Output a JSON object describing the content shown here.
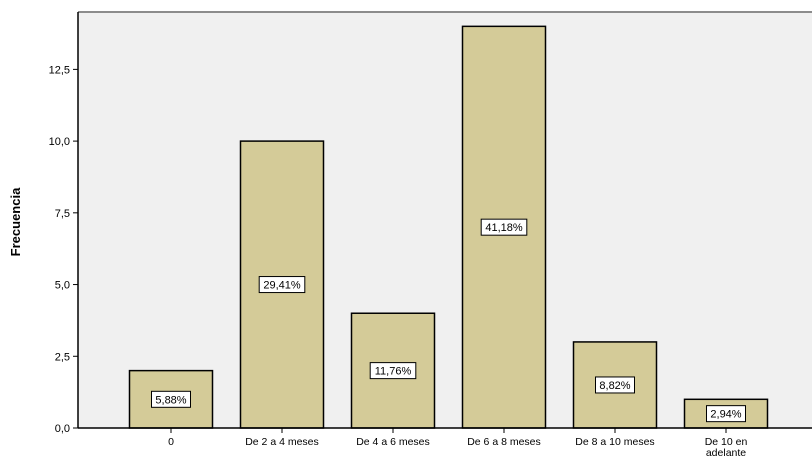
{
  "chart_data": {
    "type": "bar",
    "title": "",
    "xlabel": "",
    "ylabel": "Frecuencia",
    "ylim": [
      0,
      14.5
    ],
    "yticks": [
      "0,0",
      "2,5",
      "5,0",
      "7,5",
      "10,0",
      "12,5"
    ],
    "ytick_values": [
      0,
      2.5,
      5,
      7.5,
      10,
      12.5
    ],
    "categories": [
      [
        "0"
      ],
      [
        "De 2 a 4 meses"
      ],
      [
        "De 4 a 6 meses"
      ],
      [
        "De 6 a 8 meses"
      ],
      [
        "De 8 a 10 meses"
      ],
      [
        "De 10 en",
        "adelante"
      ]
    ],
    "values": [
      2,
      10,
      4,
      14,
      3,
      1
    ],
    "data_labels": [
      "5,88%",
      "29,41%",
      "11,76%",
      "41,18%",
      "8,82%",
      "2,94%"
    ],
    "grid": false,
    "legend": "none"
  },
  "colors": {
    "plot_background": "#f0f0f0",
    "bar_fill": "#d4cb98",
    "bar_stroke": "#000000",
    "frame": "#8c8c8c"
  }
}
